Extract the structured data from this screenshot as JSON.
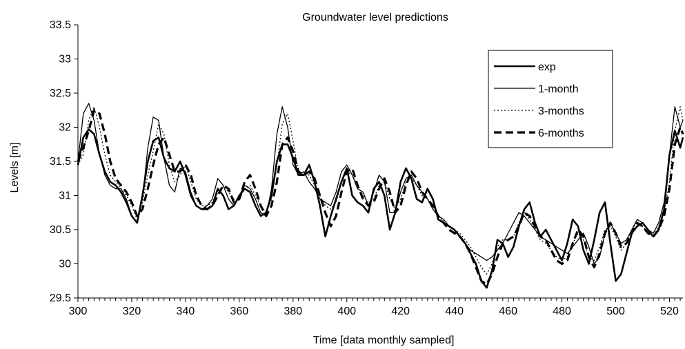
{
  "chart_data": {
    "type": "line",
    "title": "Groundwater level predictions",
    "xlabel": "Time [data monthly sampled]",
    "ylabel": "Levels [m]",
    "xlim": [
      300,
      525
    ],
    "ylim": [
      29.5,
      33.5
    ],
    "xticks": [
      300,
      320,
      340,
      360,
      380,
      400,
      420,
      440,
      460,
      480,
      500,
      520
    ],
    "yticks": [
      29.5,
      30,
      30.5,
      31,
      31.5,
      32,
      32.5,
      33,
      33.5
    ],
    "ytick_labels": [
      "29.5",
      "30",
      "30.5",
      "31",
      "31.5",
      "32",
      "32.5",
      "33",
      "33.5"
    ],
    "grid": false,
    "legend_position": "top-right",
    "x": [
      300,
      302,
      304,
      306,
      308,
      310,
      312,
      314,
      316,
      318,
      320,
      322,
      324,
      326,
      328,
      330,
      332,
      334,
      336,
      338,
      340,
      342,
      344,
      346,
      348,
      350,
      352,
      354,
      356,
      358,
      360,
      362,
      364,
      366,
      368,
      370,
      372,
      374,
      376,
      378,
      380,
      382,
      384,
      386,
      388,
      390,
      392,
      394,
      396,
      398,
      400,
      402,
      404,
      406,
      408,
      410,
      412,
      414,
      416,
      418,
      420,
      422,
      424,
      426,
      428,
      430,
      432,
      434,
      436,
      438,
      440,
      442,
      444,
      446,
      448,
      450,
      452,
      454,
      456,
      458,
      460,
      462,
      464,
      466,
      468,
      470,
      472,
      474,
      476,
      478,
      480,
      482,
      484,
      486,
      488,
      490,
      492,
      494,
      496,
      498,
      500,
      502,
      504,
      506,
      508,
      510,
      512,
      514,
      516,
      518,
      520,
      522,
      524,
      525
    ],
    "series": [
      {
        "name": "exp",
        "style": "solid-thick",
        "color": "#000000",
        "values": [
          31.45,
          31.85,
          31.97,
          31.9,
          31.6,
          31.35,
          31.2,
          31.15,
          31.05,
          30.9,
          30.7,
          30.6,
          31.0,
          31.5,
          31.8,
          31.85,
          31.55,
          31.4,
          31.35,
          31.5,
          31.3,
          31.0,
          30.85,
          30.8,
          30.8,
          30.85,
          31.1,
          31.0,
          30.8,
          30.85,
          31.0,
          31.1,
          31.05,
          30.85,
          30.7,
          30.75,
          31.0,
          31.5,
          31.75,
          31.75,
          31.55,
          31.3,
          31.3,
          31.45,
          31.2,
          30.85,
          30.4,
          30.7,
          30.95,
          31.2,
          31.4,
          31.0,
          30.9,
          30.85,
          30.75,
          31.1,
          31.2,
          31.0,
          30.5,
          30.75,
          31.2,
          31.4,
          31.25,
          30.95,
          30.9,
          31.1,
          30.95,
          30.65,
          30.6,
          30.55,
          30.5,
          30.4,
          30.3,
          30.15,
          30.0,
          29.75,
          29.65,
          29.9,
          30.35,
          30.3,
          30.1,
          30.25,
          30.55,
          30.8,
          30.9,
          30.6,
          30.4,
          30.5,
          30.35,
          30.2,
          30.05,
          30.3,
          30.65,
          30.55,
          30.2,
          30.0,
          30.35,
          30.75,
          30.9,
          30.3,
          29.75,
          29.85,
          30.15,
          30.45,
          30.55,
          30.6,
          30.5,
          30.4,
          30.5,
          30.8,
          31.6,
          31.95,
          31.7,
          31.85
        ]
      },
      {
        "name": "1-month",
        "style": "solid-thin",
        "color": "#000000",
        "values": [
          31.5,
          32.2,
          32.35,
          32.1,
          31.6,
          31.3,
          31.15,
          31.1,
          31.1,
          30.95,
          30.7,
          30.6,
          30.95,
          31.7,
          32.15,
          32.1,
          31.55,
          31.15,
          31.05,
          31.4,
          31.35,
          31.05,
          30.85,
          30.8,
          30.85,
          30.95,
          31.25,
          31.15,
          30.95,
          30.85,
          31.0,
          31.15,
          31.1,
          30.95,
          30.75,
          30.7,
          31.1,
          31.9,
          32.3,
          32.0,
          31.45,
          31.3,
          31.35,
          31.2,
          31.1,
          30.95,
          30.9,
          30.85,
          31.05,
          31.35,
          31.45,
          31.3,
          31.1,
          31.05,
          30.85,
          31.05,
          31.3,
          31.2,
          30.75,
          30.75,
          31.05,
          31.25,
          31.3,
          31.15,
          31.05,
          30.95,
          30.8,
          30.7,
          30.65,
          30.55,
          30.5,
          30.4,
          30.3,
          30.2,
          30.15,
          30.1,
          30.05,
          30.1,
          30.2,
          30.3,
          30.45,
          30.6,
          30.75,
          30.7,
          30.6,
          30.5,
          30.4,
          30.35,
          30.3,
          30.25,
          30.2,
          30.15,
          30.25,
          30.35,
          30.45,
          30.25,
          30.0,
          30.1,
          30.45,
          30.6,
          30.45,
          30.3,
          30.35,
          30.5,
          30.65,
          30.6,
          30.5,
          30.45,
          30.6,
          30.9,
          31.6,
          32.3,
          32.0,
          32.1
        ]
      },
      {
        "name": "3-months",
        "style": "dotted",
        "color": "#000000",
        "values": [
          31.45,
          31.6,
          32.1,
          32.3,
          32.0,
          31.6,
          31.3,
          31.2,
          31.1,
          31.0,
          30.85,
          30.65,
          30.9,
          31.3,
          31.65,
          32.05,
          31.9,
          31.45,
          31.2,
          31.3,
          31.45,
          31.2,
          30.95,
          30.85,
          30.85,
          30.9,
          31.05,
          31.15,
          31.05,
          30.95,
          30.95,
          31.1,
          31.15,
          31.0,
          30.85,
          30.75,
          30.95,
          31.45,
          32.05,
          32.2,
          31.8,
          31.35,
          31.3,
          31.3,
          31.15,
          31.0,
          30.85,
          30.8,
          30.9,
          31.2,
          31.35,
          31.3,
          31.15,
          31.0,
          30.9,
          30.95,
          31.15,
          31.2,
          30.95,
          30.8,
          30.95,
          31.2,
          31.25,
          31.15,
          31.0,
          30.95,
          30.85,
          30.7,
          30.6,
          30.55,
          30.5,
          30.45,
          30.35,
          30.25,
          30.1,
          29.95,
          29.85,
          30.0,
          30.25,
          30.35,
          30.35,
          30.4,
          30.6,
          30.75,
          30.65,
          30.5,
          30.35,
          30.3,
          30.2,
          30.1,
          30.05,
          30.1,
          30.3,
          30.45,
          30.35,
          30.1,
          30.05,
          30.25,
          30.5,
          30.55,
          30.4,
          30.2,
          30.3,
          30.5,
          30.6,
          30.55,
          30.45,
          30.4,
          30.55,
          30.75,
          31.2,
          31.95,
          32.3,
          32.1
        ]
      },
      {
        "name": "6-months",
        "style": "dashed-thick",
        "color": "#000000",
        "values": [
          31.5,
          31.7,
          31.95,
          32.25,
          32.2,
          31.9,
          31.5,
          31.25,
          31.15,
          31.05,
          30.9,
          30.7,
          30.8,
          31.1,
          31.45,
          31.75,
          31.85,
          31.6,
          31.35,
          31.35,
          31.45,
          31.3,
          31.0,
          30.85,
          30.8,
          30.85,
          31.0,
          31.15,
          31.1,
          30.9,
          30.95,
          31.2,
          31.3,
          31.1,
          30.85,
          30.7,
          30.85,
          31.2,
          31.75,
          31.85,
          31.65,
          31.35,
          31.3,
          31.35,
          31.25,
          31.0,
          30.75,
          30.55,
          30.7,
          31.05,
          31.35,
          31.4,
          31.15,
          30.95,
          30.85,
          30.9,
          31.1,
          31.25,
          31.05,
          30.75,
          30.85,
          31.15,
          31.35,
          31.25,
          31.05,
          30.95,
          30.85,
          30.7,
          30.6,
          30.5,
          30.45,
          30.4,
          30.3,
          30.15,
          29.95,
          29.75,
          29.7,
          29.85,
          30.1,
          30.3,
          30.35,
          30.4,
          30.55,
          30.75,
          30.7,
          30.55,
          30.4,
          30.35,
          30.2,
          30.05,
          30.0,
          30.05,
          30.3,
          30.5,
          30.4,
          30.1,
          29.95,
          30.15,
          30.45,
          30.6,
          30.45,
          30.25,
          30.3,
          30.45,
          30.6,
          30.55,
          30.45,
          30.4,
          30.5,
          30.7,
          31.1,
          31.75,
          32.0,
          31.9
        ]
      }
    ]
  }
}
